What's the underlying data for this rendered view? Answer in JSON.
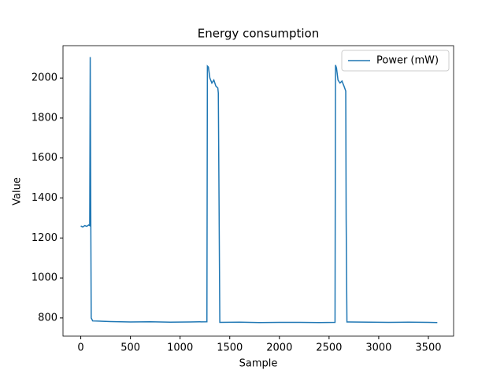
{
  "chart_data": {
    "type": "line",
    "title": "Energy consumption",
    "x_label": "Sample",
    "y_label": "Value",
    "x": [
      0,
      20,
      40,
      60,
      80,
      90,
      95,
      100,
      105,
      120,
      300,
      500,
      700,
      900,
      1100,
      1270,
      1275,
      1285,
      1300,
      1320,
      1340,
      1360,
      1380,
      1385,
      1392,
      1400,
      1600,
      1800,
      2000,
      2200,
      2400,
      2560,
      2565,
      2575,
      2590,
      2610,
      2630,
      2650,
      2668,
      2672,
      2680,
      2700,
      2900,
      3100,
      3300,
      3500,
      3590
    ],
    "series": [
      {
        "name": "Power (mW)",
        "color": "#1f77b4",
        "values": [
          1260,
          1255,
          1262,
          1258,
          1265,
          1262,
          2105,
          1400,
          800,
          785,
          782,
          780,
          781,
          779,
          780,
          781,
          2060,
          2055,
          2000,
          1975,
          1990,
          1960,
          1950,
          1925,
          1400,
          778,
          779,
          777,
          778,
          778,
          777,
          778,
          2065,
          2050,
          1990,
          1975,
          1985,
          1960,
          1935,
          1300,
          780,
          780,
          779,
          778,
          779,
          778,
          777
        ]
      }
    ],
    "xlim": [
      -179,
      3754
    ],
    "ylim": [
      709,
      2162
    ],
    "xticks": [
      0,
      500,
      1000,
      1500,
      2000,
      2500,
      3000,
      3500
    ],
    "yticks": [
      800,
      1000,
      1200,
      1400,
      1600,
      1800,
      2000
    ],
    "legend": "upper right"
  }
}
